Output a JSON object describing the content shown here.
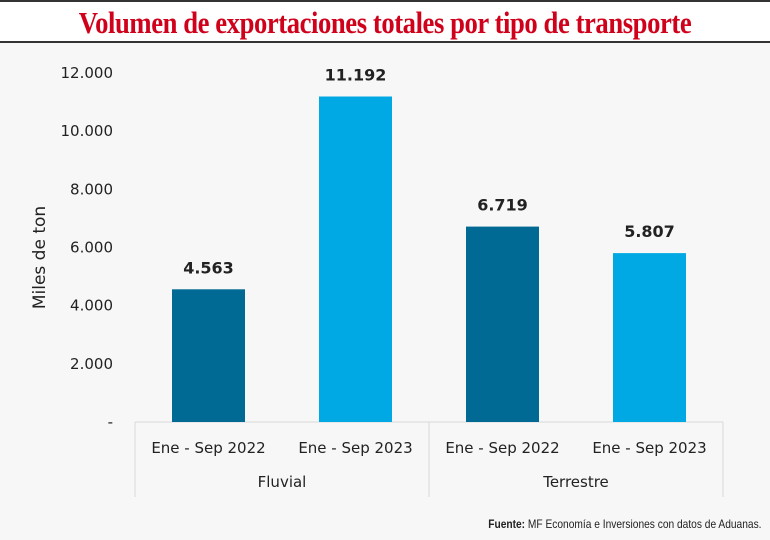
{
  "chart_data": {
    "type": "bar",
    "title": "Volumen de exportaciones totales por tipo de transporte",
    "ylabel": "Miles de ton",
    "xlabel": "",
    "ylim": [
      0,
      12000
    ],
    "yticks": [
      0,
      2000,
      4000,
      6000,
      8000,
      10000,
      12000
    ],
    "ytick_labels": [
      "-",
      "2.000",
      "4.000",
      "6.000",
      "8.000",
      "10.000",
      "12.000"
    ],
    "grid": false,
    "groups": [
      {
        "name": "Fluvial",
        "categories": [
          "Ene - Sep 2022",
          "Ene - Sep 2023"
        ]
      },
      {
        "name": "Terrestre",
        "categories": [
          "Ene - Sep 2022",
          "Ene - Sep 2023"
        ]
      }
    ],
    "bars": [
      {
        "group": "Fluvial",
        "category": "Ene - Sep 2022",
        "value": 4563,
        "label": "4.563",
        "color": "#006a94"
      },
      {
        "group": "Fluvial",
        "category": "Ene - Sep 2023",
        "value": 11192,
        "label": "11.192",
        "color": "#00a9e3"
      },
      {
        "group": "Terrestre",
        "category": "Ene - Sep 2022",
        "value": 6719,
        "label": "6.719",
        "color": "#006a94"
      },
      {
        "group": "Terrestre",
        "category": "Ene - Sep 2023",
        "value": 5807,
        "label": "5.807",
        "color": "#00a9e3"
      }
    ]
  },
  "source": {
    "label": "Fuente:",
    "text": " MF Economía e Inversiones con datos de Aduanas."
  }
}
